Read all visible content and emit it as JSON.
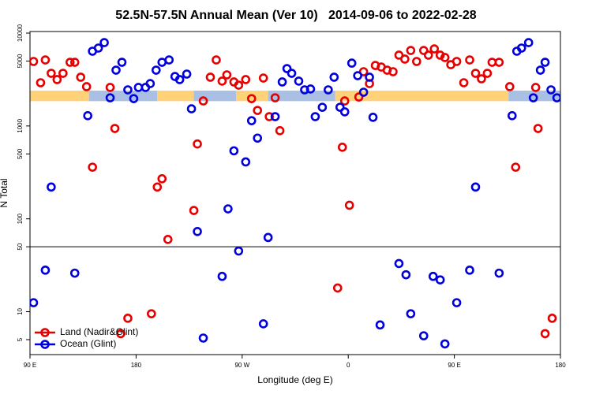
{
  "chart_data": {
    "type": "scatter",
    "title": "52.5N-57.5N Annual Mean (Ver 10)   2014-09-06 to 2022-02-28",
    "xlabel": "Longitude (deg E)",
    "ylabel": "N Total",
    "xlim": [
      90,
      540
    ],
    "xticks": [
      {
        "value": 90,
        "label": "90 E"
      },
      180,
      {
        "value": 270,
        "label": "90 W"
      },
      {
        "value": 360,
        "label": "0"
      },
      {
        "value": 450,
        "label": "90 E"
      },
      {
        "value": 540,
        "label": "180"
      }
    ],
    "ylim": [
      3.45,
      10400
    ],
    "yticks": [
      5,
      10,
      50,
      100,
      500,
      1000,
      5000,
      10000
    ],
    "ylog": true,
    "divider": 50,
    "legend": "lower left",
    "band_ylim": [
      1850,
      2400
    ],
    "bands": [
      {
        "color": "#ffd27a",
        "x": [
          90,
          140
        ]
      },
      {
        "color": "#a9bfe3",
        "x": [
          140,
          198
        ]
      },
      {
        "color": "#ffd27a",
        "x": [
          198,
          229
        ]
      },
      {
        "color": "#a9bfe3",
        "x": [
          229,
          265
        ]
      },
      {
        "color": "#ffd27a",
        "x": [
          265,
          292
        ]
      },
      {
        "color": "#a9bfe3",
        "x": [
          292,
          349
        ]
      },
      {
        "color": "#ffd27a",
        "x": [
          349,
          496
        ]
      },
      {
        "color": "#a9bfe3",
        "x": [
          496,
          540
        ]
      }
    ],
    "series": [
      {
        "name": "Land (Nadir&Glint)",
        "color": "#e60000",
        "x": [
          93,
          99,
          103,
          108,
          113,
          118,
          124,
          128,
          133,
          138,
          143,
          158,
          162,
          167,
          173,
          193,
          198,
          202,
          207,
          229,
          232,
          237,
          243,
          248,
          253,
          257,
          263,
          267,
          273,
          278,
          283,
          288,
          293,
          298,
          302,
          351,
          355,
          357,
          361,
          369,
          373,
          378,
          383,
          388,
          393,
          398,
          403,
          408,
          413,
          418,
          424,
          428,
          433,
          438,
          442,
          447,
          452,
          458,
          463,
          468,
          473,
          478,
          482,
          488,
          497,
          502,
          519,
          521,
          527,
          533
        ],
        "values": [
          4950,
          2920,
          5140,
          3690,
          3160,
          3690,
          4850,
          4850,
          3350,
          2650,
          360,
          2600,
          940,
          5.8,
          8.5,
          9.5,
          220,
          270,
          60,
          123,
          640,
          1860,
          3350,
          5140,
          3040,
          3550,
          2980,
          2750,
          3160,
          1970,
          1470,
          3280,
          1260,
          2010,
          890,
          18,
          590,
          1860,
          140,
          2050,
          3840,
          2860,
          4480,
          4310,
          3990,
          3840,
          5790,
          5250,
          6500,
          4950,
          6500,
          5790,
          6760,
          5790,
          5460,
          4570,
          4950,
          2920,
          5140,
          3690,
          3220,
          3690,
          4850,
          4850,
          2650,
          360,
          2600,
          940,
          5.8,
          8.5
        ]
      },
      {
        "name": "Ocean (Glint)",
        "color": "#0000dd",
        "x": [
          93,
          103,
          108,
          128,
          139,
          143,
          148,
          153,
          158,
          163,
          168,
          173,
          178,
          182,
          188,
          192,
          197,
          202,
          208,
          213,
          217,
          223,
          227,
          232,
          237,
          253,
          258,
          263,
          267,
          273,
          278,
          283,
          288,
          292,
          298,
          304,
          308,
          312,
          318,
          323,
          328,
          332,
          338,
          343,
          348,
          353,
          357,
          363,
          368,
          373,
          378,
          381,
          387,
          403,
          409,
          413,
          424,
          432,
          438,
          442,
          452,
          463,
          468,
          488,
          499,
          503,
          507,
          513,
          517,
          523,
          527,
          532,
          537
        ],
        "values": [
          12.5,
          28,
          220,
          26,
          1290,
          6380,
          6900,
          7900,
          2010,
          3990,
          4850,
          2450,
          1970,
          2600,
          2600,
          2860,
          3990,
          4850,
          5140,
          3410,
          3160,
          3620,
          1530,
          73,
          5.2,
          24,
          128,
          540,
          45,
          410,
          1140,
          740,
          7.4,
          63,
          1260,
          2980,
          4150,
          3690,
          3040,
          2450,
          2500,
          1260,
          1590,
          2450,
          3350,
          1590,
          1420,
          4750,
          3480,
          2310,
          3350,
          1240,
          7.2,
          33,
          25,
          9.5,
          5.5,
          24,
          22,
          4.5,
          12.5,
          28,
          220,
          26,
          1290,
          6380,
          6900,
          7900,
          2010,
          3990,
          4850,
          2450,
          2010
        ]
      }
    ]
  }
}
